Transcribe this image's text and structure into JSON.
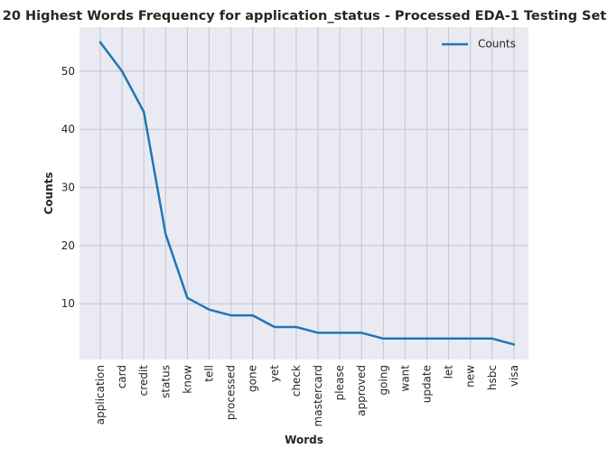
{
  "chart_data": {
    "type": "line",
    "title": "20 Highest Words Frequency for application_status - Processed EDA-1 Testing Set",
    "xlabel": "Words",
    "ylabel": "Counts",
    "categories": [
      "application",
      "card",
      "credit",
      "status",
      "know",
      "tell",
      "processed",
      "gone",
      "yet",
      "check",
      "mastercard",
      "please",
      "approved",
      "going",
      "want",
      "update",
      "let",
      "new",
      "hsbc",
      "visa"
    ],
    "series": [
      {
        "name": "Counts",
        "values": [
          55,
          50,
          43,
          22,
          11,
          9,
          8,
          8,
          6,
          6,
          5,
          5,
          5,
          4,
          4,
          4,
          4,
          4,
          4,
          3
        ],
        "color": "#1f77b4"
      }
    ],
    "ylim": [
      0.4,
      57.6
    ],
    "yticks": [
      10,
      20,
      30,
      40,
      50
    ],
    "grid": true,
    "legend_position": "top-right",
    "background_color": "#eaeaf2",
    "grid_color": "#c4c4cc"
  }
}
